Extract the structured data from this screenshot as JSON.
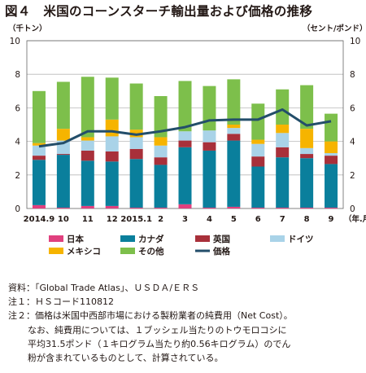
{
  "colors": {
    "japan": "#e0407e",
    "canada": "#0a7f9c",
    "uk": "#a8303a",
    "germany": "#a9d3e8",
    "mexico": "#f6b400",
    "other": "#7dbf4b",
    "price": "#234e6a",
    "grid": "#b9b9b9"
  },
  "chart_data": {
    "type": "bar",
    "title": "図４　米国のコーンスターチ輸出量および価格の推移",
    "ylabel_left": "（千トン）",
    "ylabel_right": "（セント/ポンド）",
    "xunit": "（年.月）",
    "categories": [
      "2014.9",
      "10",
      "11",
      "12",
      "2015.1",
      "2",
      "3",
      "4",
      "5",
      "6",
      "7",
      "8",
      "9"
    ],
    "ylim": [
      0,
      10
    ],
    "yticks": [
      "0",
      "2",
      "4",
      "6",
      "8",
      "10"
    ],
    "stacked": true,
    "series": [
      {
        "name": "日本",
        "key": "japan",
        "values": [
          0.2,
          0.05,
          0.15,
          0.15,
          0.05,
          0.05,
          0.25,
          0.05,
          0.1,
          0.05,
          0.05,
          0.05,
          0.05
        ]
      },
      {
        "name": "カナダ",
        "key": "canada",
        "values": [
          2.7,
          3.15,
          2.7,
          2.65,
          2.9,
          2.55,
          3.4,
          3.4,
          3.95,
          2.45,
          3.0,
          2.95,
          2.6
        ]
      },
      {
        "name": "英国",
        "key": "uk",
        "values": [
          0.25,
          0.05,
          0.6,
          0.6,
          0.6,
          0.45,
          0.4,
          0.5,
          0.4,
          0.6,
          0.6,
          0.25,
          0.5
        ]
      },
      {
        "name": "ドイツ",
        "key": "germany",
        "values": [
          0.6,
          0.8,
          0.6,
          0.9,
          0.7,
          0.7,
          0.55,
          0.7,
          0.35,
          0.75,
          0.85,
          0.35,
          0.15
        ]
      },
      {
        "name": "メキシコ",
        "key": "mexico",
        "values": [
          0.15,
          0.7,
          0.2,
          1.0,
          0.45,
          0.5,
          0.0,
          0.0,
          0.2,
          0.25,
          0.5,
          1.15,
          0.7
        ]
      },
      {
        "name": "その他",
        "key": "other",
        "values": [
          3.1,
          2.8,
          3.6,
          2.5,
          2.75,
          2.45,
          3.0,
          2.65,
          2.7,
          2.15,
          2.1,
          2.6,
          1.65
        ]
      }
    ],
    "line": {
      "name": "価格",
      "key": "price",
      "values": [
        3.7,
        3.9,
        4.6,
        4.6,
        4.4,
        4.6,
        4.85,
        5.25,
        5.3,
        5.3,
        5.9,
        4.95,
        5.2
      ]
    },
    "legend": {
      "row1": [
        "japan",
        "canada",
        "uk",
        "germany"
      ],
      "row2": [
        "mexico",
        "other",
        "price"
      ]
    }
  },
  "notes": [
    "資料：「Global Trade Atlas」、ＵＳＤＡ/ＥＲＳ",
    "注１：ＨＳコード110812",
    "注２：価格は米国中西部市場における製粉業者の純費用（Net Cost）。",
    "なお、純費用については、１ブッシェル当たりのトウモロコシに",
    "平均31.5ポンド（１キログラム当たり約0.56キログラム）のでん",
    "粉が含まれているものとして、計算されている。"
  ]
}
